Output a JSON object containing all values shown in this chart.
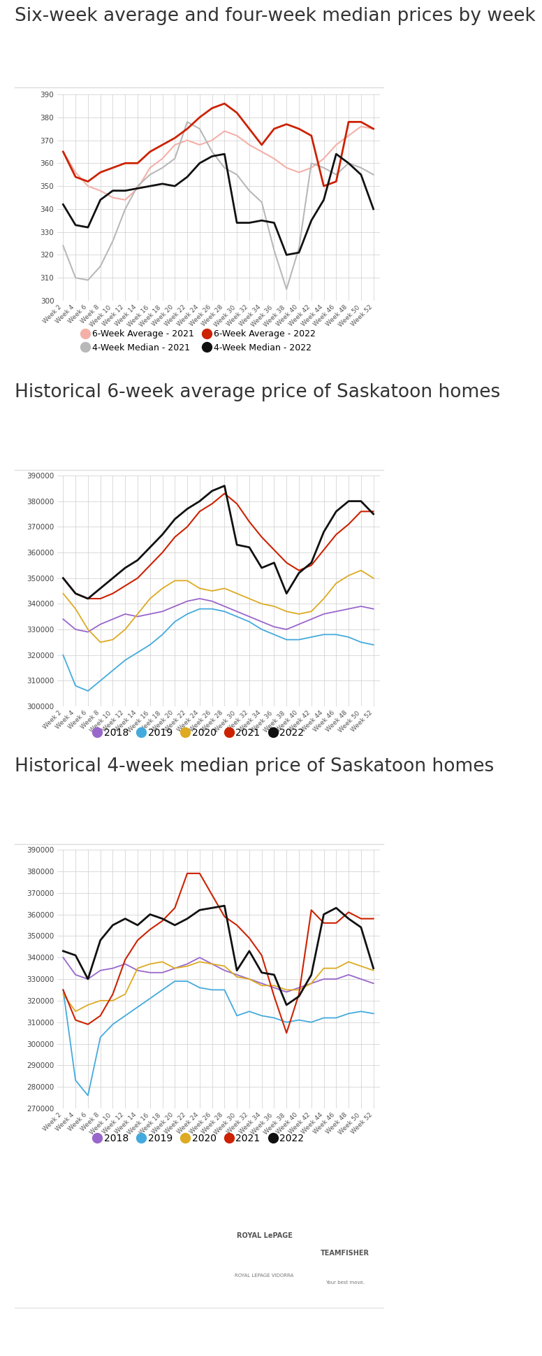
{
  "title1": "Six-week average and four-week median prices by week",
  "title2": "Historical 6-week average price of Saskatoon homes",
  "title3": "Historical 4-week median price of Saskatoon homes",
  "week_labels": [
    "Week 2",
    "Week 4",
    "Week 6",
    "Week 8",
    "Week 10",
    "Week 12",
    "Week 14",
    "Week 16",
    "Week 18",
    "Week 20",
    "Week 22",
    "Week 24",
    "Week 26",
    "Week 28",
    "Week 30",
    "Week 32",
    "Week 34",
    "Week 36",
    "Week 38",
    "Week 40",
    "Week 42",
    "Week 44",
    "Week 46",
    "Week 48",
    "Week 50",
    "Week 52"
  ],
  "chart1": {
    "avg2021": [
      365,
      356,
      350,
      348,
      345,
      344,
      349,
      358,
      362,
      368,
      370,
      368,
      370,
      374,
      372,
      368,
      365,
      362,
      358,
      356,
      358,
      362,
      368,
      372,
      376,
      375
    ],
    "med2021": [
      324,
      310,
      309,
      315,
      326,
      340,
      350,
      355,
      358,
      362,
      378,
      375,
      365,
      358,
      355,
      348,
      343,
      322,
      305,
      323,
      360,
      358,
      355,
      360,
      358,
      355
    ],
    "avg2022": [
      365,
      354,
      352,
      356,
      358,
      360,
      360,
      365,
      368,
      371,
      375,
      380,
      384,
      386,
      382,
      375,
      368,
      375,
      377,
      375,
      372,
      350,
      352,
      378,
      378,
      375
    ],
    "med2022": [
      342,
      333,
      332,
      344,
      348,
      348,
      349,
      350,
      351,
      350,
      354,
      360,
      363,
      364,
      334,
      334,
      335,
      334,
      320,
      321,
      335,
      344,
      364,
      360,
      355,
      340
    ]
  },
  "chart2": {
    "avg2018": [
      334,
      330,
      329,
      332,
      334,
      336,
      335,
      336,
      337,
      339,
      341,
      342,
      341,
      339,
      337,
      335,
      333,
      331,
      330,
      332,
      334,
      336,
      337,
      338,
      339,
      338
    ],
    "avg2019": [
      320,
      308,
      306,
      310,
      314,
      318,
      321,
      324,
      328,
      333,
      336,
      338,
      338,
      337,
      335,
      333,
      330,
      328,
      326,
      326,
      327,
      328,
      328,
      327,
      325,
      324
    ],
    "avg2020": [
      344,
      338,
      330,
      325,
      326,
      330,
      336,
      342,
      346,
      349,
      349,
      346,
      345,
      346,
      344,
      342,
      340,
      339,
      337,
      336,
      337,
      342,
      348,
      351,
      353,
      350
    ],
    "avg2021": [
      350,
      344,
      342,
      342,
      344,
      347,
      350,
      355,
      360,
      366,
      370,
      376,
      379,
      383,
      379,
      372,
      366,
      361,
      356,
      353,
      355,
      361,
      367,
      371,
      376,
      376
    ],
    "avg2022": [
      350,
      344,
      342,
      346,
      350,
      354,
      357,
      362,
      367,
      373,
      377,
      380,
      384,
      386,
      363,
      362,
      354,
      356,
      344,
      352,
      356,
      368,
      376,
      380,
      380,
      375
    ]
  },
  "chart3": {
    "med2018": [
      340,
      332,
      330,
      334,
      335,
      337,
      334,
      333,
      333,
      335,
      337,
      340,
      337,
      334,
      332,
      330,
      328,
      326,
      324,
      326,
      328,
      330,
      330,
      332,
      330,
      328
    ],
    "med2019": [
      325,
      283,
      276,
      303,
      309,
      313,
      317,
      321,
      325,
      329,
      329,
      326,
      325,
      325,
      313,
      315,
      313,
      312,
      310,
      311,
      310,
      312,
      312,
      314,
      315,
      314
    ],
    "med2020": [
      323,
      315,
      318,
      320,
      320,
      323,
      335,
      337,
      338,
      335,
      336,
      338,
      337,
      336,
      331,
      330,
      327,
      327,
      325,
      325,
      328,
      335,
      335,
      338,
      336,
      334
    ],
    "med2021": [
      325,
      311,
      309,
      313,
      323,
      339,
      348,
      353,
      357,
      363,
      379,
      379,
      369,
      359,
      355,
      349,
      341,
      322,
      305,
      323,
      362,
      356,
      356,
      361,
      358,
      358
    ],
    "med2022": [
      343,
      341,
      330,
      348,
      355,
      358,
      355,
      360,
      358,
      355,
      358,
      362,
      363,
      364,
      334,
      343,
      333,
      332,
      318,
      322,
      332,
      360,
      363,
      358,
      354,
      335
    ]
  },
  "colors": {
    "avg2021_c1": "#f4b0a8",
    "med2021_c1": "#b8b8b8",
    "avg2022_c1": "#cc2200",
    "med2022_c1": "#111111",
    "c2018": "#9966cc",
    "c2019": "#44aadd",
    "c2020": "#ddaa22",
    "c2021": "#cc2200",
    "c2022": "#111111"
  },
  "bg_color": "#ffffff",
  "text_color": "#333333",
  "grid_color": "#cccccc",
  "chart1_ylim": [
    300,
    390
  ],
  "chart1_yticks": [
    300,
    310,
    320,
    330,
    340,
    350,
    360,
    370,
    380,
    390
  ],
  "chart2_ylim": [
    300000,
    390000
  ],
  "chart2_yticks": [
    300000,
    310000,
    320000,
    330000,
    340000,
    350000,
    360000,
    370000,
    380000,
    390000
  ],
  "chart3_ylim": [
    270000,
    390000
  ],
  "chart3_yticks": [
    270000,
    280000,
    290000,
    300000,
    310000,
    320000,
    330000,
    340000,
    350000,
    360000,
    370000,
    380000,
    390000
  ]
}
